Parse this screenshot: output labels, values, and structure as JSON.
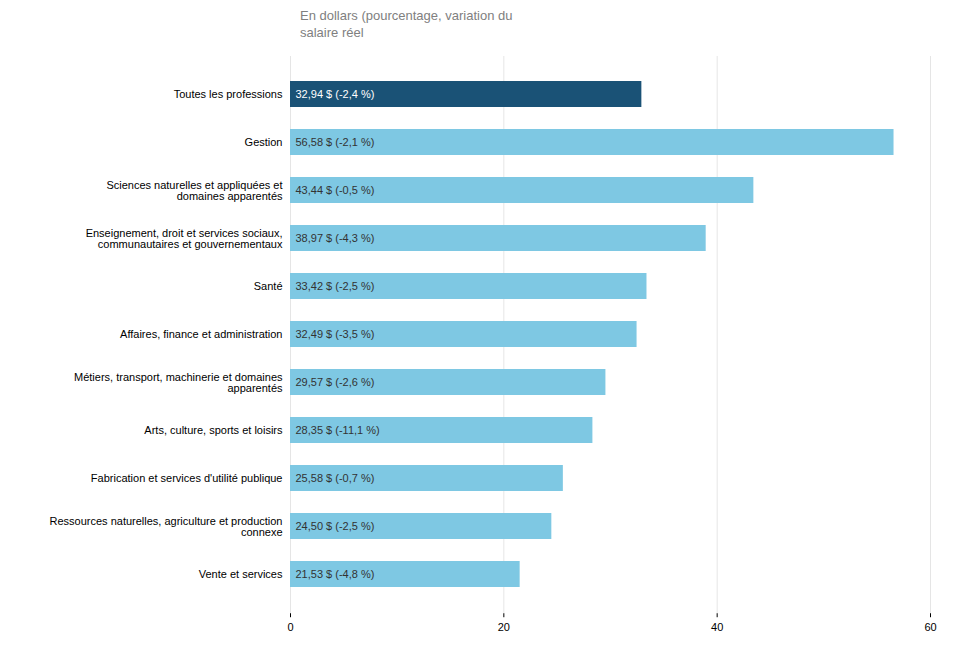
{
  "chart_data": {
    "type": "bar",
    "orientation": "horizontal",
    "subtitle": "En dollars (pourcentage, variation du\nsalaire réel",
    "categories": [
      "Vente et services",
      "Ressources naturelles, agriculture et production\nconnexe",
      "Fabrication et services d'utilité publique",
      "Arts, culture, sports et loisirs",
      "Métiers, transport, machinerie et domaines\napparentés",
      "Affaires, finance et administration",
      "Santé",
      "Enseignement, droit et services sociaux,\ncommunautaires et gouvernementaux",
      "Sciences naturelles et appliquées et\ndomaines apparentés",
      "Gestion",
      "Toutes les professions"
    ],
    "values": [
      21.53,
      24.5,
      25.58,
      28.35,
      29.57,
      32.49,
      33.42,
      38.97,
      43.44,
      56.58,
      32.94
    ],
    "value_labels": [
      "21,53 $ (-4,8 %)",
      "24,50 $ (-2,5 %)",
      "25,58 $ (-0,7 %)",
      "28,35 $ (-11,1 %)",
      "29,57 $ (-2,6 %)",
      "32,49 $ (-3,5 %)",
      "33,42 $ (-2,5 %)",
      "38,97 $ (-4,3 %)",
      "43,44 $ (-0,5 %)",
      "56,58 $ (-2,1 %)",
      "32,94 $ (-2,4 %)"
    ],
    "data_labels": true,
    "colors": [
      "#7ec8e3",
      "#7ec8e3",
      "#7ec8e3",
      "#7ec8e3",
      "#7ec8e3",
      "#7ec8e3",
      "#7ec8e3",
      "#7ec8e3",
      "#7ec8e3",
      "#7ec8e3",
      "#1a5276"
    ],
    "xlim": [
      0,
      60
    ],
    "xticks": [
      0,
      20,
      40,
      60
    ],
    "grid": true
  }
}
